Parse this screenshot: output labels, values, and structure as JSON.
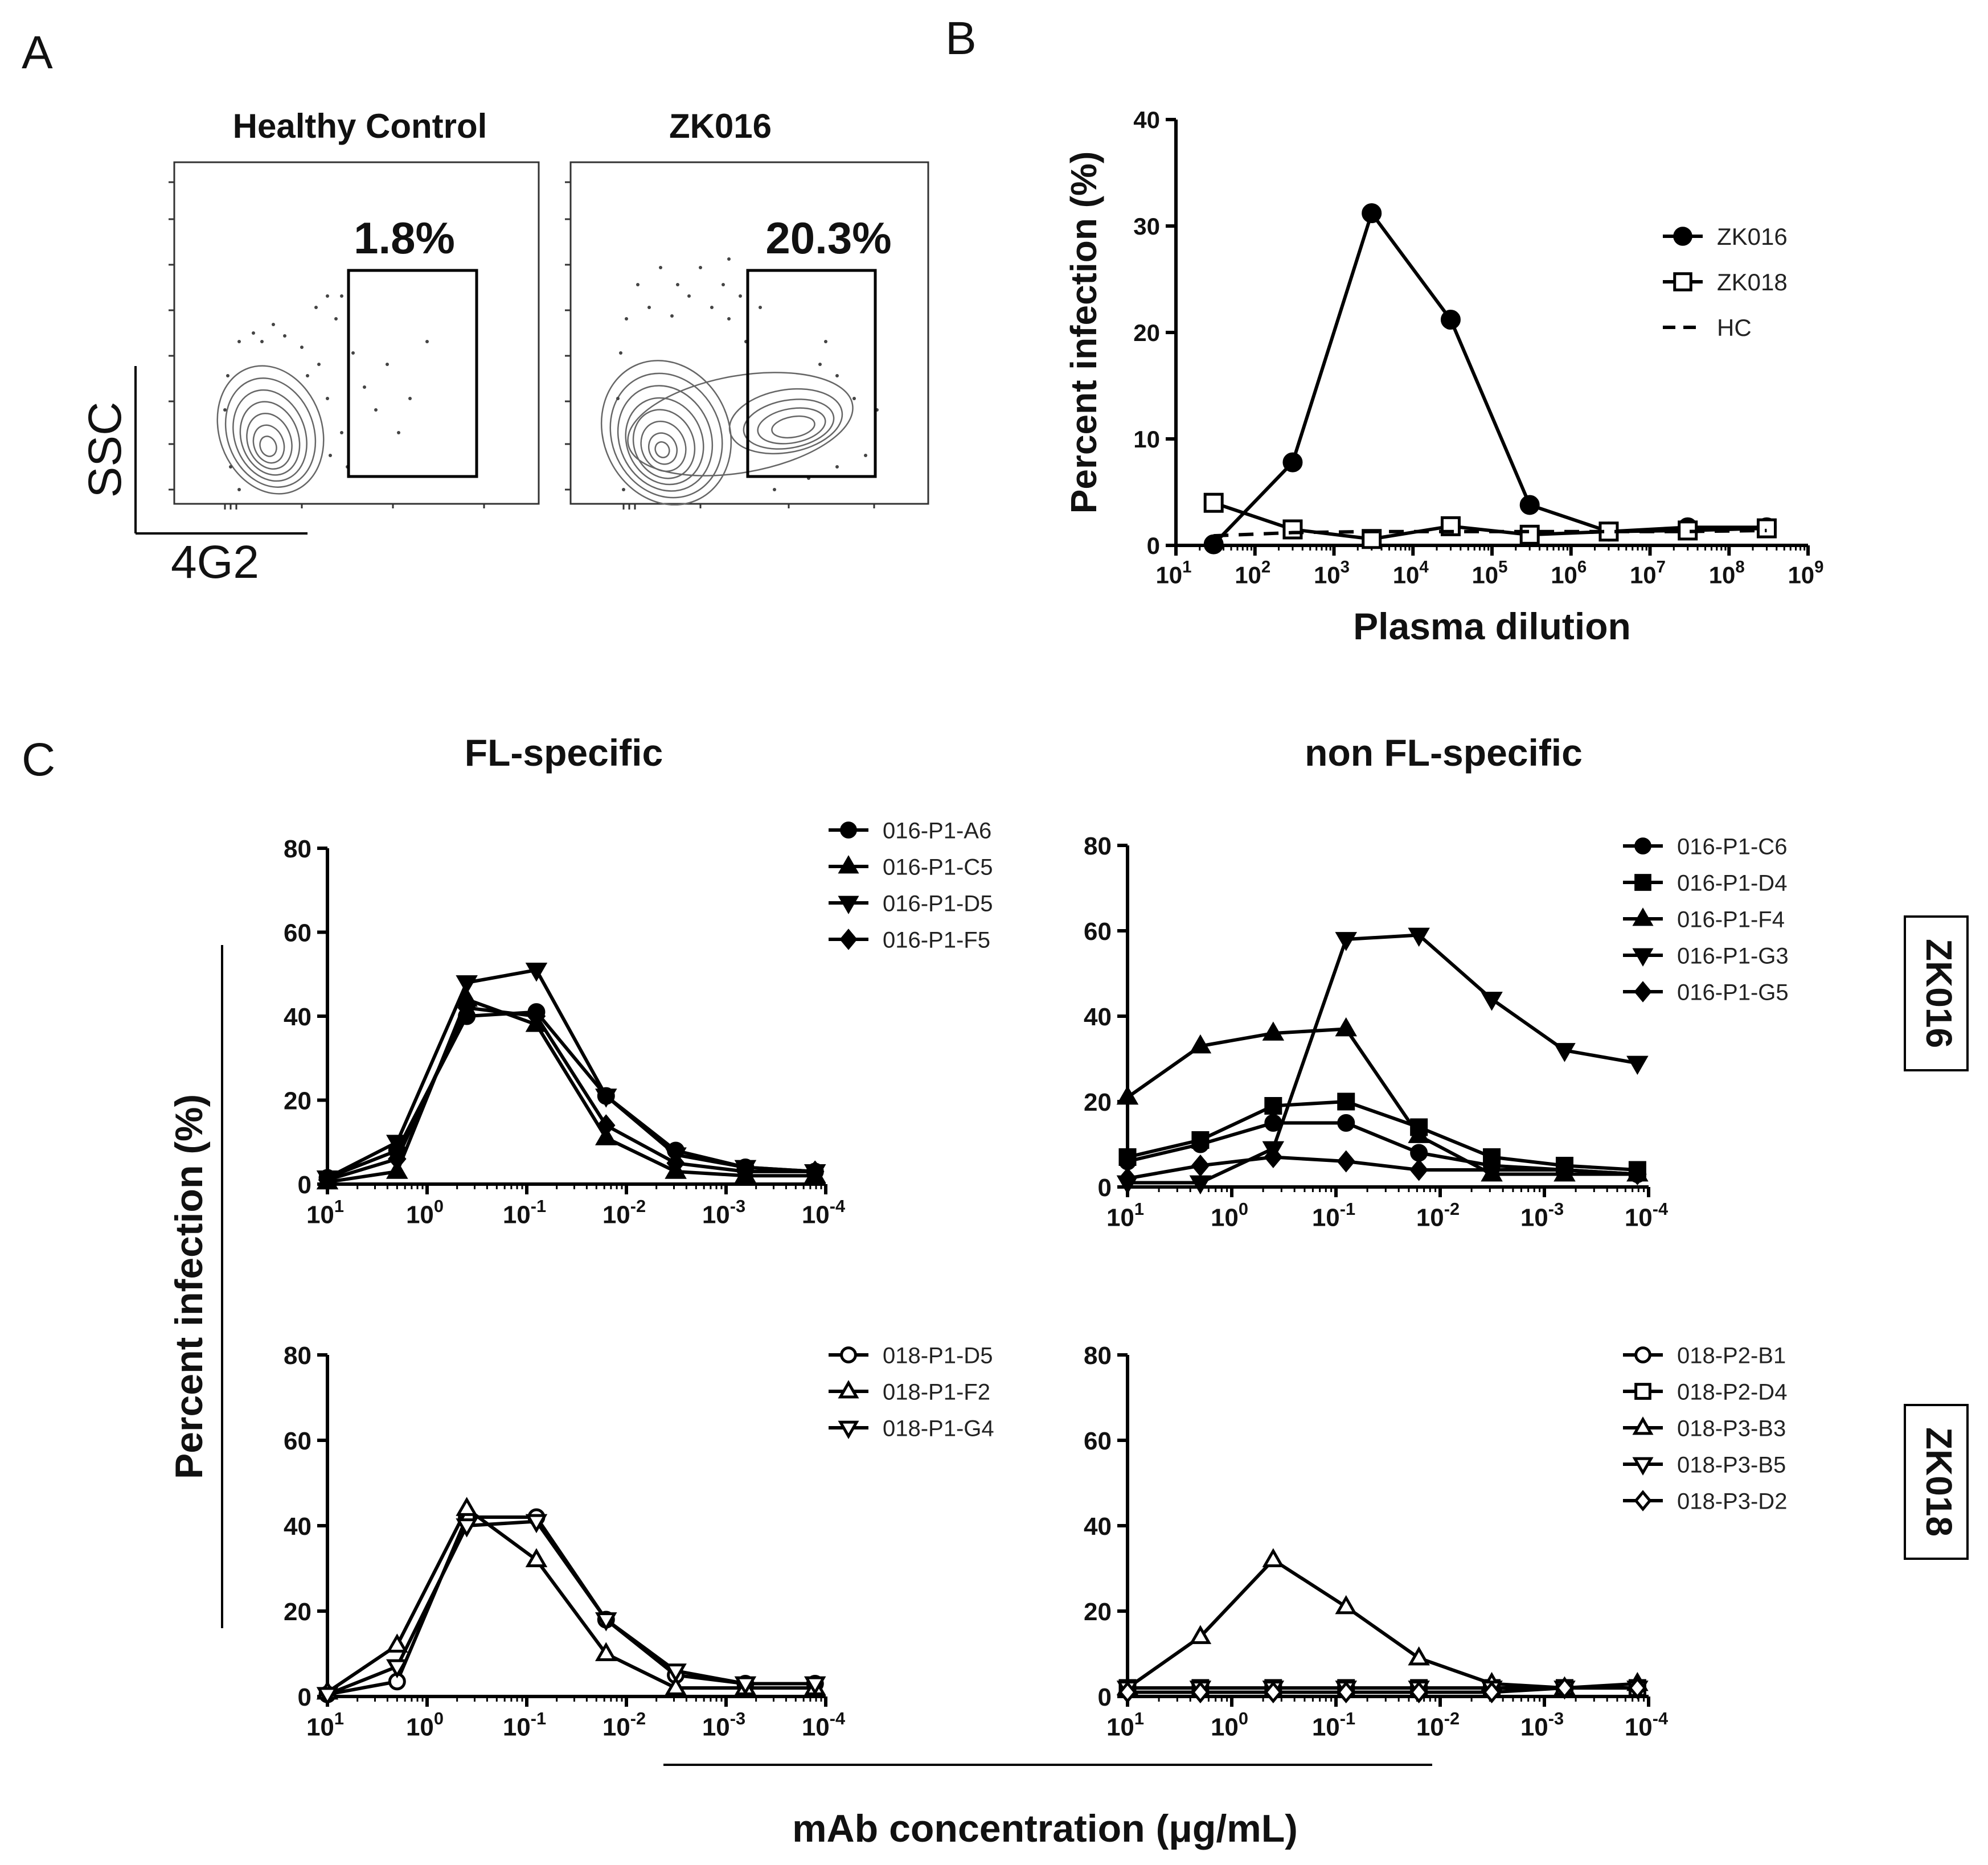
{
  "panels": {
    "a": "A",
    "b": "B",
    "c": "C"
  },
  "panel_a": {
    "axis_y": "SSC",
    "axis_x": "4G2",
    "plots": [
      {
        "title": "Healthy  Control",
        "gate_percent": "1.8%"
      },
      {
        "title": "ZK016",
        "gate_percent": "20.3%"
      }
    ]
  },
  "panel_c": {
    "column_titles": [
      "FL-specific",
      "non FL-specific"
    ],
    "row_labels": [
      "ZK016",
      "ZK018"
    ],
    "ylabel": "Percent infection (%)",
    "xlabel": "mAb concentration (μg/mL)"
  },
  "chart_data": [
    {
      "id": "B",
      "type": "line",
      "title": "",
      "xlabel": "Plasma dilution",
      "ylabel": "Percent infection (%)",
      "xscale": "log",
      "xlim": [
        10,
        1000000000
      ],
      "ylim": [
        0,
        40
      ],
      "yticks": [
        "0",
        "10",
        "20",
        "30",
        "40"
      ],
      "xticks": [
        {
          "base": "10",
          "exp": "1"
        },
        {
          "base": "10",
          "exp": "2"
        },
        {
          "base": "10",
          "exp": "3"
        },
        {
          "base": "10",
          "exp": "4"
        },
        {
          "base": "10",
          "exp": "5"
        },
        {
          "base": "10",
          "exp": "6"
        },
        {
          "base": "10",
          "exp": "7"
        },
        {
          "base": "10",
          "exp": "8"
        },
        {
          "base": "10",
          "exp": "9"
        }
      ],
      "legend_position": "top-right",
      "series": [
        {
          "name": "ZK016",
          "marker": "circle",
          "filled": true,
          "line": "solid",
          "x": [
            30,
            300,
            3000,
            30000,
            300000,
            3000000,
            30000000,
            300000000
          ],
          "y": [
            0.1,
            7.8,
            31.2,
            21.2,
            3.8,
            1.3,
            1.7,
            1.7
          ]
        },
        {
          "name": "ZK018",
          "marker": "square",
          "filled": false,
          "line": "solid",
          "x": [
            30,
            300,
            3000,
            30000,
            300000,
            3000000,
            30000000,
            300000000
          ],
          "y": [
            4.0,
            1.5,
            0.6,
            1.8,
            1.0,
            1.3,
            1.4,
            1.6
          ]
        },
        {
          "name": "HC",
          "marker": "none",
          "filled": false,
          "line": "dashed",
          "x": [
            30,
            300,
            3000,
            30000,
            300000,
            3000000,
            30000000,
            300000000
          ],
          "y": [
            0.9,
            1.2,
            1.3,
            1.3,
            1.3,
            1.3,
            1.3,
            1.4
          ]
        }
      ]
    },
    {
      "id": "C1",
      "type": "line",
      "title": "FL-specific (ZK016)",
      "xscale": "log-reversed",
      "xlim": [
        10,
        0.0001
      ],
      "ylim": [
        0,
        80
      ],
      "yticks": [
        "0",
        "20",
        "40",
        "60",
        "80"
      ],
      "xticks": [
        {
          "base": "10",
          "exp": "1"
        },
        {
          "base": "10",
          "exp": "0"
        },
        {
          "base": "10",
          "exp": "-1"
        },
        {
          "base": "10",
          "exp": "-2"
        },
        {
          "base": "10",
          "exp": "-3"
        },
        {
          "base": "10",
          "exp": "-4"
        }
      ],
      "legend_position": "top-right",
      "series": [
        {
          "name": "016-P1-A6",
          "marker": "circle",
          "filled": true,
          "x": [
            10,
            2,
            0.4,
            0.08,
            0.016,
            0.0032,
            0.00064,
            0.000128
          ],
          "y": [
            1.5,
            8,
            40,
            41,
            21,
            8,
            4,
            3
          ]
        },
        {
          "name": "016-P1-C5",
          "marker": "triangle-up",
          "filled": true,
          "x": [
            10,
            2,
            0.4,
            0.08,
            0.016,
            0.0032,
            0.00064,
            0.000128
          ],
          "y": [
            0.5,
            3,
            44,
            38,
            11,
            3,
            2,
            2
          ]
        },
        {
          "name": "016-P1-D5",
          "marker": "triangle-down",
          "filled": true,
          "x": [
            10,
            2,
            0.4,
            0.08,
            0.016,
            0.0032,
            0.00064,
            0.000128
          ],
          "y": [
            1.5,
            10,
            48,
            51,
            21,
            7,
            4,
            3
          ]
        },
        {
          "name": "016-P1-F5",
          "marker": "diamond",
          "filled": true,
          "x": [
            10,
            2,
            0.4,
            0.08,
            0.016,
            0.0032,
            0.00064,
            0.000128
          ],
          "y": [
            1,
            6,
            42,
            40,
            14,
            5,
            3,
            3
          ]
        }
      ]
    },
    {
      "id": "C2",
      "type": "line",
      "title": "non FL-specific (ZK016)",
      "xscale": "log-reversed",
      "xlim": [
        10,
        0.0001
      ],
      "ylim": [
        0,
        80
      ],
      "yticks": [
        "0",
        "20",
        "40",
        "60",
        "80"
      ],
      "xticks": [
        {
          "base": "10",
          "exp": "1"
        },
        {
          "base": "10",
          "exp": "0"
        },
        {
          "base": "10",
          "exp": "-1"
        },
        {
          "base": "10",
          "exp": "-2"
        },
        {
          "base": "10",
          "exp": "-3"
        },
        {
          "base": "10",
          "exp": "-4"
        }
      ],
      "legend_position": "top-right",
      "series": [
        {
          "name": "016-P1-C6",
          "marker": "circle",
          "filled": true,
          "x": [
            10,
            2,
            0.4,
            0.08,
            0.016,
            0.0032,
            0.00064,
            0.000128
          ],
          "y": [
            6,
            10,
            15,
            15,
            8,
            5,
            4,
            3
          ]
        },
        {
          "name": "016-P1-D4",
          "marker": "square",
          "filled": true,
          "x": [
            10,
            2,
            0.4,
            0.08,
            0.016,
            0.0032,
            0.00064,
            0.000128
          ],
          "y": [
            7,
            11,
            19,
            20,
            14,
            7,
            5,
            4
          ]
        },
        {
          "name": "016-P1-F4",
          "marker": "triangle-up",
          "filled": true,
          "x": [
            10,
            2,
            0.4,
            0.08,
            0.016,
            0.0032,
            0.00064,
            0.000128
          ],
          "y": [
            21,
            33,
            36,
            37,
            12,
            3,
            3,
            3
          ]
        },
        {
          "name": "016-P1-G3",
          "marker": "triangle-down",
          "filled": true,
          "x": [
            10,
            2,
            0.4,
            0.08,
            0.016,
            0.0032,
            0.00064,
            0.000128
          ],
          "y": [
            1,
            1,
            9,
            58,
            59,
            44,
            32,
            29
          ]
        },
        {
          "name": "016-P1-G5",
          "marker": "diamond",
          "filled": true,
          "x": [
            10,
            2,
            0.4,
            0.08,
            0.016,
            0.0032,
            0.00064,
            0.000128
          ],
          "y": [
            2,
            5,
            7,
            6,
            4,
            4,
            4,
            3
          ]
        }
      ]
    },
    {
      "id": "C3",
      "type": "line",
      "title": "FL-specific (ZK018)",
      "xscale": "log-reversed",
      "xlim": [
        10,
        0.0001
      ],
      "ylim": [
        0,
        80
      ],
      "yticks": [
        "0",
        "20",
        "40",
        "60",
        "80"
      ],
      "xticks": [
        {
          "base": "10",
          "exp": "1"
        },
        {
          "base": "10",
          "exp": "0"
        },
        {
          "base": "10",
          "exp": "-1"
        },
        {
          "base": "10",
          "exp": "-2"
        },
        {
          "base": "10",
          "exp": "-3"
        },
        {
          "base": "10",
          "exp": "-4"
        }
      ],
      "legend_position": "top-right",
      "series": [
        {
          "name": "018-P1-D5",
          "marker": "circle",
          "filled": false,
          "x": [
            10,
            2,
            0.4,
            0.08,
            0.016,
            0.0032,
            0.00064,
            0.000128
          ],
          "y": [
            0.5,
            3.5,
            42,
            42,
            18,
            5,
            3,
            3
          ]
        },
        {
          "name": "018-P1-F2",
          "marker": "triangle-up",
          "filled": false,
          "x": [
            10,
            2,
            0.4,
            0.08,
            0.016,
            0.0032,
            0.00064,
            0.000128
          ],
          "y": [
            1,
            12,
            44,
            32,
            10,
            2,
            2,
            2
          ]
        },
        {
          "name": "018-P1-G4",
          "marker": "triangle-down",
          "filled": false,
          "x": [
            10,
            2,
            0.4,
            0.08,
            0.016,
            0.0032,
            0.00064,
            0.000128
          ],
          "y": [
            0.5,
            7,
            40,
            41,
            18,
            6,
            3,
            3
          ]
        }
      ]
    },
    {
      "id": "C4",
      "type": "line",
      "title": "non FL-specific (ZK018)",
      "xscale": "log-reversed",
      "xlim": [
        10,
        0.0001
      ],
      "ylim": [
        0,
        80
      ],
      "yticks": [
        "0",
        "20",
        "40",
        "60",
        "80"
      ],
      "xticks": [
        {
          "base": "10",
          "exp": "1"
        },
        {
          "base": "10",
          "exp": "0"
        },
        {
          "base": "10",
          "exp": "-1"
        },
        {
          "base": "10",
          "exp": "-2"
        },
        {
          "base": "10",
          "exp": "-3"
        },
        {
          "base": "10",
          "exp": "-4"
        }
      ],
      "legend_position": "top-right",
      "series": [
        {
          "name": "018-P2-B1",
          "marker": "circle",
          "filled": false,
          "x": [
            10,
            2,
            0.4,
            0.08,
            0.016,
            0.0032,
            0.00064,
            0.000128
          ],
          "y": [
            2,
            2,
            2,
            2,
            2,
            2,
            2,
            2
          ]
        },
        {
          "name": "018-P2-D4",
          "marker": "square",
          "filled": false,
          "x": [
            10,
            2,
            0.4,
            0.08,
            0.016,
            0.0032,
            0.00064,
            0.000128
          ],
          "y": [
            2,
            2,
            2,
            2,
            2,
            2,
            2,
            2
          ]
        },
        {
          "name": "018-P3-B3",
          "marker": "triangle-up",
          "filled": false,
          "x": [
            10,
            2,
            0.4,
            0.08,
            0.016,
            0.0032,
            0.00064,
            0.000128
          ],
          "y": [
            2,
            14,
            32,
            21,
            9,
            3,
            2,
            3
          ]
        },
        {
          "name": "018-P3-B5",
          "marker": "triangle-down",
          "filled": false,
          "x": [
            10,
            2,
            0.4,
            0.08,
            0.016,
            0.0032,
            0.00064,
            0.000128
          ],
          "y": [
            2,
            2,
            2,
            2,
            2,
            2,
            2,
            2
          ]
        },
        {
          "name": "018-P3-D2",
          "marker": "diamond",
          "filled": false,
          "x": [
            10,
            2,
            0.4,
            0.08,
            0.016,
            0.0032,
            0.00064,
            0.000128
          ],
          "y": [
            1,
            1,
            1,
            1,
            1,
            1,
            2,
            2
          ]
        }
      ]
    }
  ]
}
